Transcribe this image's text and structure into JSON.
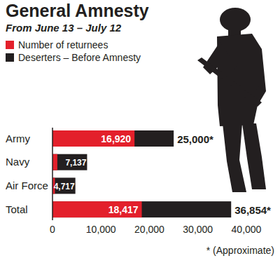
{
  "chart_data": {
    "type": "bar",
    "title": "General Amnesty",
    "subtitle": "From June 13 – July 12",
    "annotations": [
      "* (Approximate)"
    ],
    "orientation": "horizontal",
    "stacked": false,
    "grid": false,
    "legend": "top-left",
    "data_labels": true,
    "categories": [
      "Army",
      "Navy",
      "Air Force",
      "Total"
    ],
    "series": [
      {
        "name": "Number of returnees",
        "color": "#e3202b",
        "values": [
          16920,
          997,
          500,
          18417
        ],
        "value_labels": [
          "16,920",
          null,
          null,
          "18,417"
        ]
      },
      {
        "name": "Deserters – Before Amnesty",
        "color": "#231f20",
        "values": [
          25000,
          7137,
          4717,
          36854
        ],
        "value_labels": [
          "25,000*",
          "7,137",
          "4,717",
          "36,854*"
        ]
      }
    ],
    "xlim": [
      0,
      40000
    ],
    "xticks": [
      0,
      {
        "value": 10000,
        "label": "10,000"
      },
      {
        "value": 20000,
        "label": "20,000"
      },
      {
        "value": 30000,
        "label": "30,000"
      },
      {
        "value": 40000,
        "label": "40,000"
      }
    ]
  }
}
